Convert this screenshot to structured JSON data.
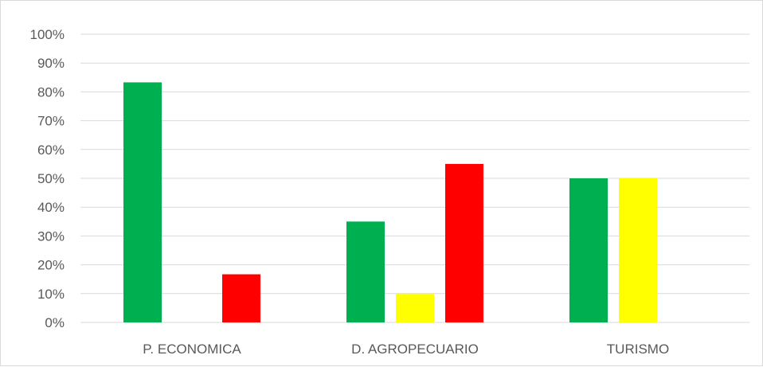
{
  "chart_data": {
    "type": "bar",
    "categories": [
      "P. ECONOMICA",
      "D. AGROPECUARIO",
      "TURISMO"
    ],
    "series": [
      {
        "values": [
          83.3,
          35,
          50
        ],
        "color": "#00b050"
      },
      {
        "values": [
          0,
          10,
          50
        ],
        "color": "#ffff00"
      },
      {
        "values": [
          16.7,
          55,
          0
        ],
        "color": "#ff0000"
      }
    ],
    "ylim": [
      0,
      100
    ],
    "yticks": [
      "0%",
      "10%",
      "20%",
      "30%",
      "40%",
      "50%",
      "60%",
      "70%",
      "80%",
      "90%",
      "100%"
    ],
    "ylabel": "",
    "xlabel": "",
    "title": "",
    "grid": true,
    "legend": "none",
    "colors": {
      "gridline": "#d9d9d9",
      "axis_text": "#595959",
      "border": "#d9d9d9"
    }
  }
}
